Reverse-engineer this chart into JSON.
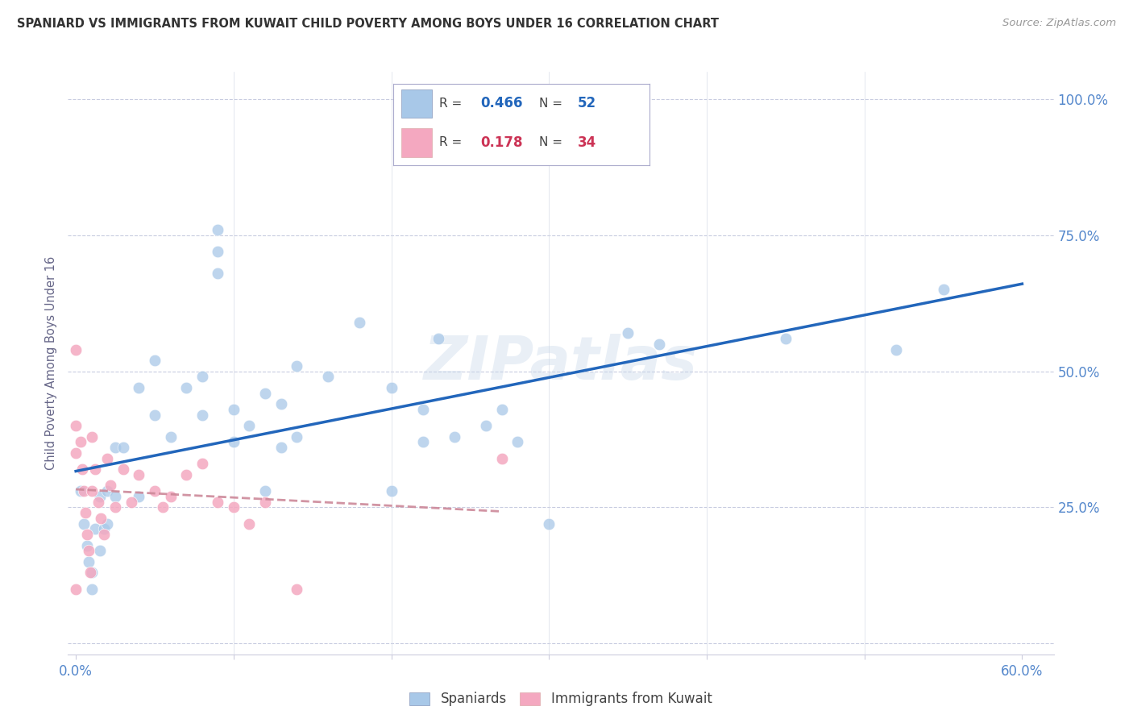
{
  "title": "SPANIARD VS IMMIGRANTS FROM KUWAIT CHILD POVERTY AMONG BOYS UNDER 16 CORRELATION CHART",
  "source": "Source: ZipAtlas.com",
  "ylabel": "Child Poverty Among Boys Under 16",
  "x_ticks": [
    0.0,
    0.1,
    0.2,
    0.3,
    0.4,
    0.5,
    0.6
  ],
  "x_tick_labels": [
    "0.0%",
    "",
    "",
    "",
    "",
    "",
    "60.0%"
  ],
  "y_ticks": [
    0.0,
    0.25,
    0.5,
    0.75,
    1.0
  ],
  "y_tick_labels_right": [
    "",
    "25.0%",
    "50.0%",
    "75.0%",
    "100.0%"
  ],
  "xlim": [
    -0.005,
    0.62
  ],
  "ylim": [
    -0.02,
    1.05
  ],
  "R_blue": "0.466",
  "N_blue": "52",
  "R_pink": "0.178",
  "N_pink": "34",
  "watermark": "ZIPatlas",
  "blue_scatter_color": "#a8c8e8",
  "pink_scatter_color": "#f4a8c0",
  "blue_line_color": "#2266bb",
  "pink_line_color": "#cc8899",
  "grid_color": "#c8cce0",
  "axis_tick_color": "#5588cc",
  "title_color": "#333333",
  "source_color": "#999999",
  "ylabel_color": "#666688",
  "spaniards_x": [
    0.003,
    0.005,
    0.007,
    0.008,
    0.01,
    0.01,
    0.012,
    0.015,
    0.015,
    0.018,
    0.02,
    0.02,
    0.025,
    0.025,
    0.03,
    0.04,
    0.04,
    0.05,
    0.05,
    0.06,
    0.07,
    0.08,
    0.08,
    0.09,
    0.09,
    0.09,
    0.1,
    0.1,
    0.11,
    0.12,
    0.12,
    0.13,
    0.13,
    0.14,
    0.14,
    0.16,
    0.18,
    0.2,
    0.2,
    0.22,
    0.22,
    0.23,
    0.24,
    0.26,
    0.27,
    0.28,
    0.3,
    0.35,
    0.37,
    0.45,
    0.52,
    0.55
  ],
  "spaniards_y": [
    0.28,
    0.22,
    0.18,
    0.15,
    0.13,
    0.1,
    0.21,
    0.17,
    0.27,
    0.21,
    0.28,
    0.22,
    0.36,
    0.27,
    0.36,
    0.47,
    0.27,
    0.52,
    0.42,
    0.38,
    0.47,
    0.49,
    0.42,
    0.76,
    0.72,
    0.68,
    0.43,
    0.37,
    0.4,
    0.46,
    0.28,
    0.44,
    0.36,
    0.51,
    0.38,
    0.49,
    0.59,
    0.47,
    0.28,
    0.43,
    0.37,
    0.56,
    0.38,
    0.4,
    0.43,
    0.37,
    0.22,
    0.57,
    0.55,
    0.56,
    0.54,
    0.65
  ],
  "kuwait_x": [
    0.0,
    0.0,
    0.0,
    0.0,
    0.003,
    0.004,
    0.005,
    0.006,
    0.007,
    0.008,
    0.009,
    0.01,
    0.01,
    0.012,
    0.014,
    0.016,
    0.018,
    0.02,
    0.022,
    0.025,
    0.03,
    0.035,
    0.04,
    0.05,
    0.055,
    0.06,
    0.07,
    0.08,
    0.09,
    0.1,
    0.11,
    0.12,
    0.14,
    0.27
  ],
  "kuwait_y": [
    0.54,
    0.4,
    0.35,
    0.1,
    0.37,
    0.32,
    0.28,
    0.24,
    0.2,
    0.17,
    0.13,
    0.38,
    0.28,
    0.32,
    0.26,
    0.23,
    0.2,
    0.34,
    0.29,
    0.25,
    0.32,
    0.26,
    0.31,
    0.28,
    0.25,
    0.27,
    0.31,
    0.33,
    0.26,
    0.25,
    0.22,
    0.26,
    0.1,
    0.34
  ]
}
